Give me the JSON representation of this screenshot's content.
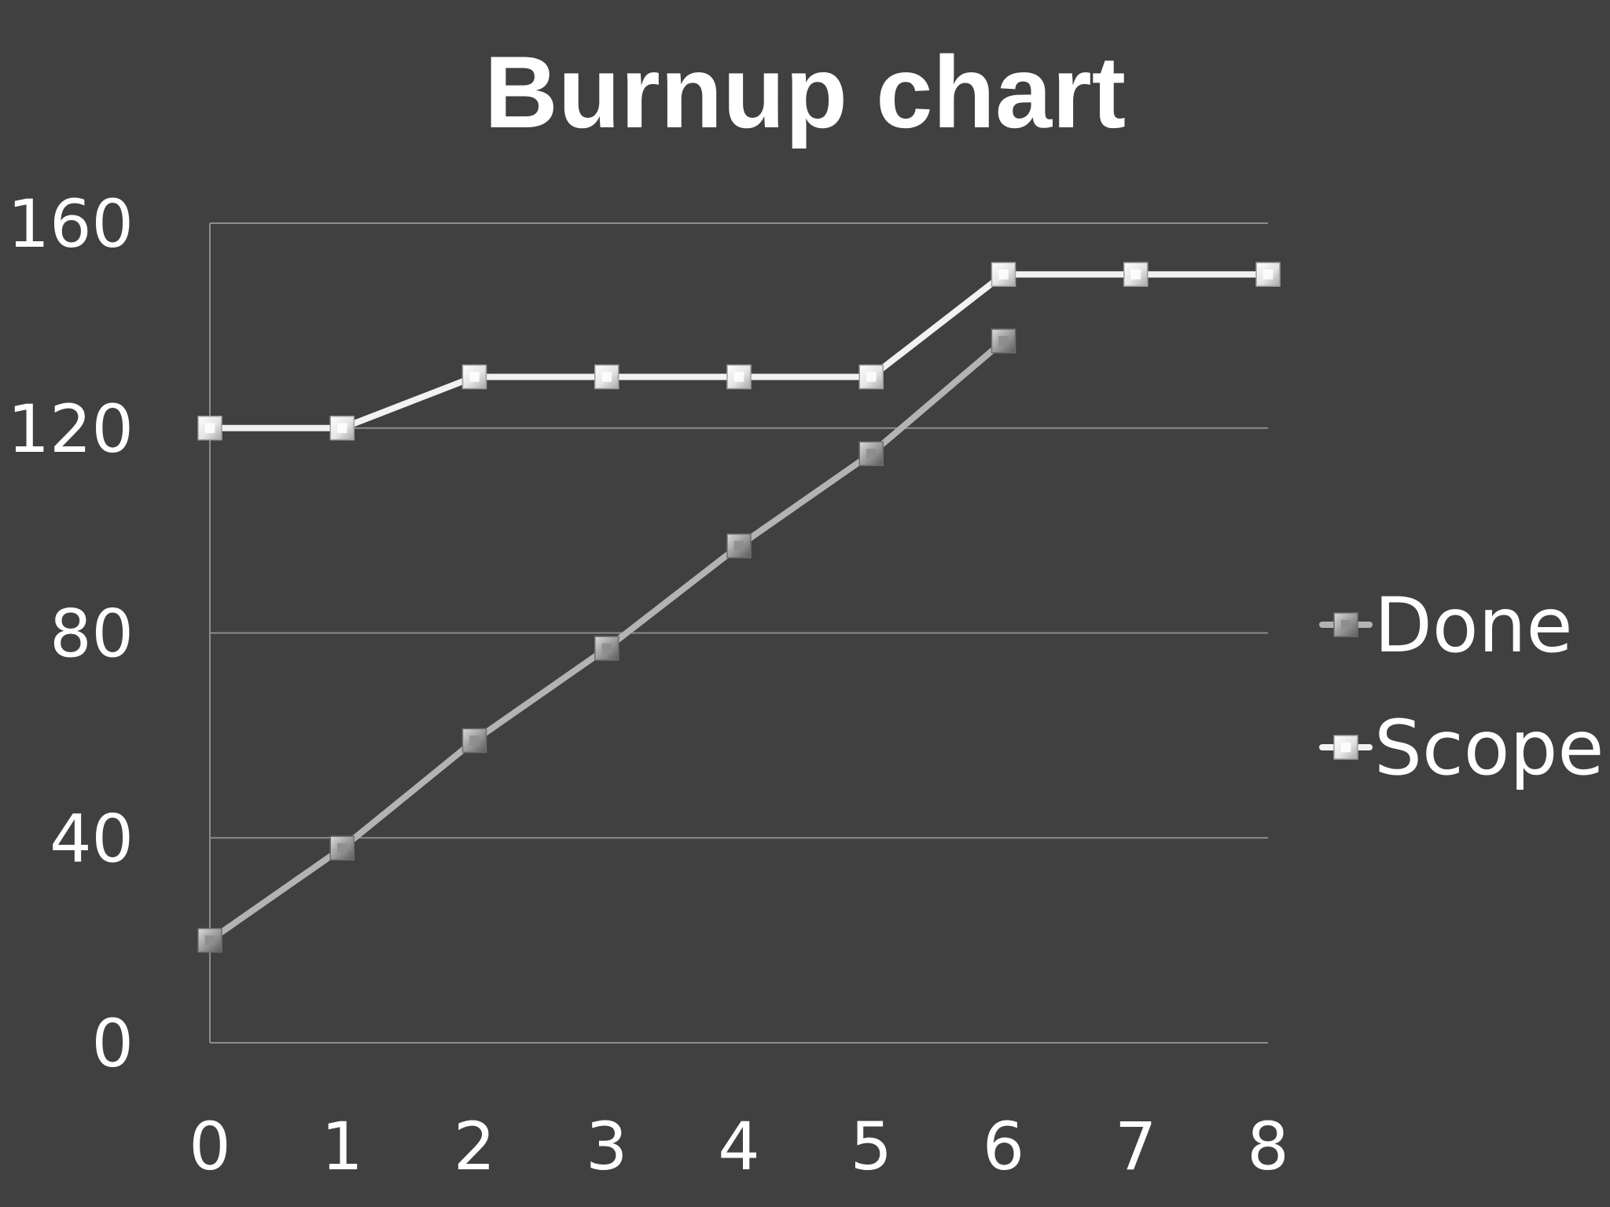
{
  "chart_data": {
    "type": "line",
    "title": "Burnup chart",
    "xlabel": "",
    "ylabel": "",
    "x": [
      0,
      1,
      2,
      3,
      4,
      5,
      6,
      7,
      8
    ],
    "xlim": [
      0,
      8
    ],
    "ylim": [
      0,
      160
    ],
    "yticks": [
      0,
      40,
      80,
      120,
      160
    ],
    "grid": true,
    "legend_position": "right",
    "background_color": "#404040",
    "series": [
      {
        "name": "Done",
        "color": "#b3b3b3",
        "marker": "square",
        "marker_color": "#9a9a9a",
        "values": [
          20,
          38,
          59,
          77,
          97,
          115,
          137,
          null,
          null
        ]
      },
      {
        "name": "Scope",
        "color": "#f2f2f2",
        "marker": "square",
        "marker_color": "#ececec",
        "values": [
          120,
          120,
          130,
          130,
          130,
          130,
          150,
          150,
          150
        ]
      }
    ]
  }
}
